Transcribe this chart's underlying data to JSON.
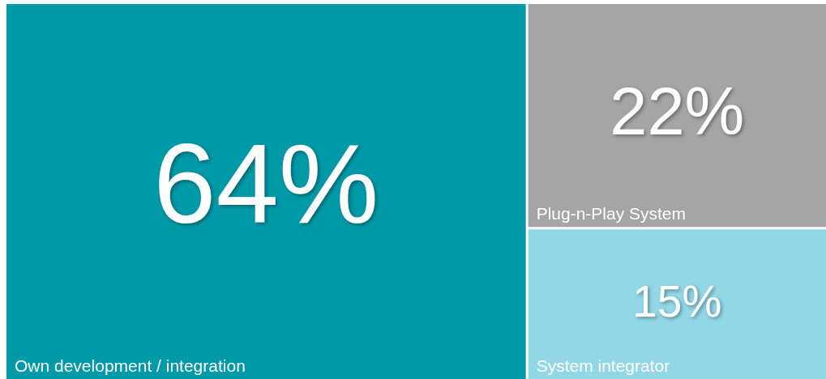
{
  "chart_data": {
    "type": "other",
    "categories": [
      "Own development / integration",
      "Plug-n-Play System",
      "System integrator"
    ],
    "values": [
      64,
      22,
      15
    ],
    "colors": [
      "#0099a8",
      "#a5a5a5",
      "#92d7e6"
    ],
    "value_labels": [
      "64%",
      "22%",
      "15%"
    ]
  }
}
